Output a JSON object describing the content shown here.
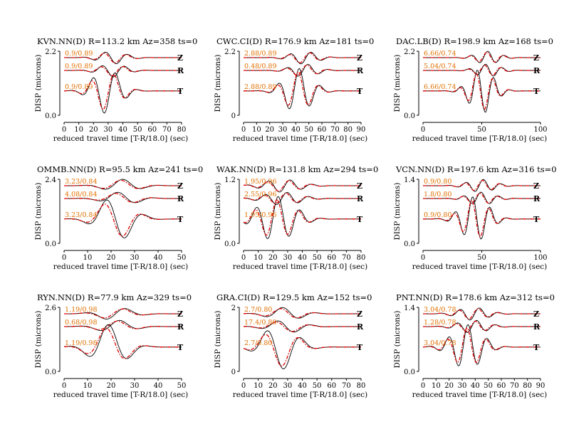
{
  "figure": {
    "ylabel": "DISP (microns)",
    "xlabel": "reduced travel time [T-R/18.0] (sec)",
    "observed_color": "#000000",
    "synthetic_color": "#e00000",
    "shift_label_color": "#e07000"
  },
  "chart_data": [
    {
      "type": "line",
      "title": "KVN.NN(D) R=113.2 km Az=358 ts=0",
      "xlim": [
        0,
        80
      ],
      "xticks": [
        0,
        10,
        20,
        30,
        40,
        50,
        60,
        70,
        80
      ],
      "ymax_label": "2.2",
      "ymin_label": "0.0",
      "traces": [
        {
          "component": "Z",
          "shift": "0.9/0.89"
        },
        {
          "component": "R",
          "shift": "0.9/0.89"
        },
        {
          "component": "T",
          "shift": "0.9/0.89"
        }
      ]
    },
    {
      "type": "line",
      "title": "CWC.CI(D) R=176.9 km Az=181 ts=0",
      "xlim": [
        0,
        90
      ],
      "xticks": [
        0,
        10,
        20,
        30,
        40,
        50,
        60,
        70,
        80,
        90
      ],
      "ymax_label": "2.2",
      "ymin_label": "0",
      "traces": [
        {
          "component": "Z",
          "shift": "2.88/0.89"
        },
        {
          "component": "R",
          "shift": "0.48/0.89"
        },
        {
          "component": "T",
          "shift": "2.88/0.89"
        }
      ]
    },
    {
      "type": "line",
      "title": "DAC.LB(D) R=198.9 km Az=168 ts=0",
      "xlim": [
        0,
        100
      ],
      "xticks": [
        0,
        50,
        100
      ],
      "ymax_label": "2.2",
      "ymin_label": "0.0",
      "traces": [
        {
          "component": "Z",
          "shift": "6.66/0.74"
        },
        {
          "component": "R",
          "shift": "5.04/0.74"
        },
        {
          "component": "T",
          "shift": "6.66/0.74"
        }
      ]
    },
    {
      "type": "line",
      "title": "OMMB.NN(D) R=95.5 km Az=241 ts=0",
      "xlim": [
        0,
        50
      ],
      "xticks": [
        0,
        10,
        20,
        30,
        40,
        50
      ],
      "ymax_label": "2.4",
      "ymin_label": "0.0",
      "traces": [
        {
          "component": "Z",
          "shift": "3.23/0.84"
        },
        {
          "component": "R",
          "shift": "4.08/0.84"
        },
        {
          "component": "T",
          "shift": "3.23/0.84"
        }
      ]
    },
    {
      "type": "line",
      "title": "WAK.NN(D) R=131.8 km Az=294 ts=0",
      "xlim": [
        0,
        80
      ],
      "xticks": [
        0,
        10,
        20,
        30,
        40,
        50,
        60,
        70,
        80
      ],
      "ymax_label": "1.2",
      "ymin_label": "0.0",
      "traces": [
        {
          "component": "Z",
          "shift": "1.95/0.96"
        },
        {
          "component": "R",
          "shift": "2.55/0.96"
        },
        {
          "component": "T",
          "shift": "1.95/0.96"
        }
      ]
    },
    {
      "type": "line",
      "title": "VCN.NN(D) R=197.6 km Az=316 ts=0",
      "xlim": [
        0,
        100
      ],
      "xticks": [
        0,
        50,
        100
      ],
      "ymax_label": "1.4",
      "ymin_label": "0.0",
      "traces": [
        {
          "component": "Z",
          "shift": "0.9/0.80"
        },
        {
          "component": "R",
          "shift": "1.8/0.80"
        },
        {
          "component": "T",
          "shift": "0.9/0.80"
        }
      ]
    },
    {
      "type": "line",
      "title": "RYN.NN(D) R=77.9 km Az=329 ts=0",
      "xlim": [
        0,
        50
      ],
      "xticks": [
        0,
        10,
        20,
        30,
        40,
        50
      ],
      "ymax_label": "2.6",
      "ymin_label": "0.0",
      "traces": [
        {
          "component": "Z",
          "shift": "1.19/0.98"
        },
        {
          "component": "R",
          "shift": "0.68/0.98"
        },
        {
          "component": "T",
          "shift": "1.19/0.98"
        }
      ]
    },
    {
      "type": "line",
      "title": "GRA.CI(D) R=129.5 km Az=152 ts=0",
      "xlim": [
        0,
        80
      ],
      "xticks": [
        0,
        10,
        20,
        30,
        40,
        50,
        60,
        70,
        80
      ],
      "ymax_label": "2",
      "ymin_label": "0",
      "traces": [
        {
          "component": "Z",
          "shift": "2.7/0.80"
        },
        {
          "component": "R",
          "shift": "17.4/0.80"
        },
        {
          "component": "T",
          "shift": "2.7/0.80"
        }
      ]
    },
    {
      "type": "line",
      "title": "PNT.NN(D) R=178.6 km Az=312 ts=0",
      "xlim": [
        0,
        90
      ],
      "xticks": [
        0,
        10,
        20,
        30,
        40,
        50,
        60,
        70,
        80,
        90
      ],
      "ymax_label": "1.4",
      "ymin_label": "0.0",
      "traces": [
        {
          "component": "Z",
          "shift": "3.04/0.78"
        },
        {
          "component": "R",
          "shift": "1.28/0.78"
        },
        {
          "component": "T",
          "shift": "3.04/0.78"
        }
      ]
    }
  ]
}
